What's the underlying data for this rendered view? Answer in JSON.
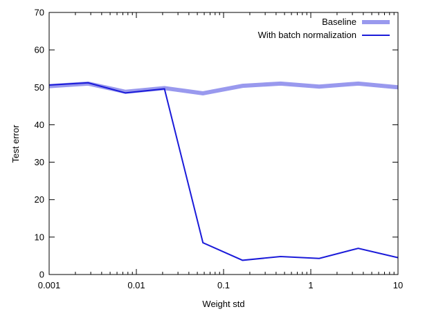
{
  "chart_data": {
    "type": "line",
    "title": "",
    "xlabel": "Weight std",
    "ylabel": "Test error",
    "xscale": "log",
    "xlim": [
      0.001,
      10
    ],
    "ylim": [
      0,
      70
    ],
    "xticks": [
      {
        "value": 0.001,
        "label": "0.001"
      },
      {
        "value": 0.01,
        "label": "0.01"
      },
      {
        "value": 0.1,
        "label": "0.1"
      },
      {
        "value": 1,
        "label": "1"
      },
      {
        "value": 10,
        "label": "10"
      }
    ],
    "yticks": [
      {
        "value": 0,
        "label": "0"
      },
      {
        "value": 10,
        "label": "10"
      },
      {
        "value": 20,
        "label": "20"
      },
      {
        "value": 30,
        "label": "30"
      },
      {
        "value": 40,
        "label": "40"
      },
      {
        "value": 50,
        "label": "50"
      },
      {
        "value": 60,
        "label": "60"
      },
      {
        "value": 70,
        "label": "70"
      }
    ],
    "legend_position": "top-right",
    "x": [
      0.001,
      0.0028,
      0.0075,
      0.021,
      0.058,
      0.165,
      0.45,
      1.25,
      3.5,
      10
    ],
    "series": [
      {
        "name": "Baseline",
        "color": "#9999ee",
        "style": "thick",
        "values": [
          50.3,
          51.0,
          48.8,
          49.8,
          48.4,
          50.4,
          51.0,
          50.2,
          51.0,
          50.0
        ]
      },
      {
        "name": "With batch normalization",
        "color": "#1a1ad9",
        "style": "thin",
        "values": [
          50.6,
          51.2,
          48.5,
          49.6,
          8.5,
          3.8,
          4.8,
          4.3,
          7.0,
          4.5
        ]
      }
    ]
  }
}
